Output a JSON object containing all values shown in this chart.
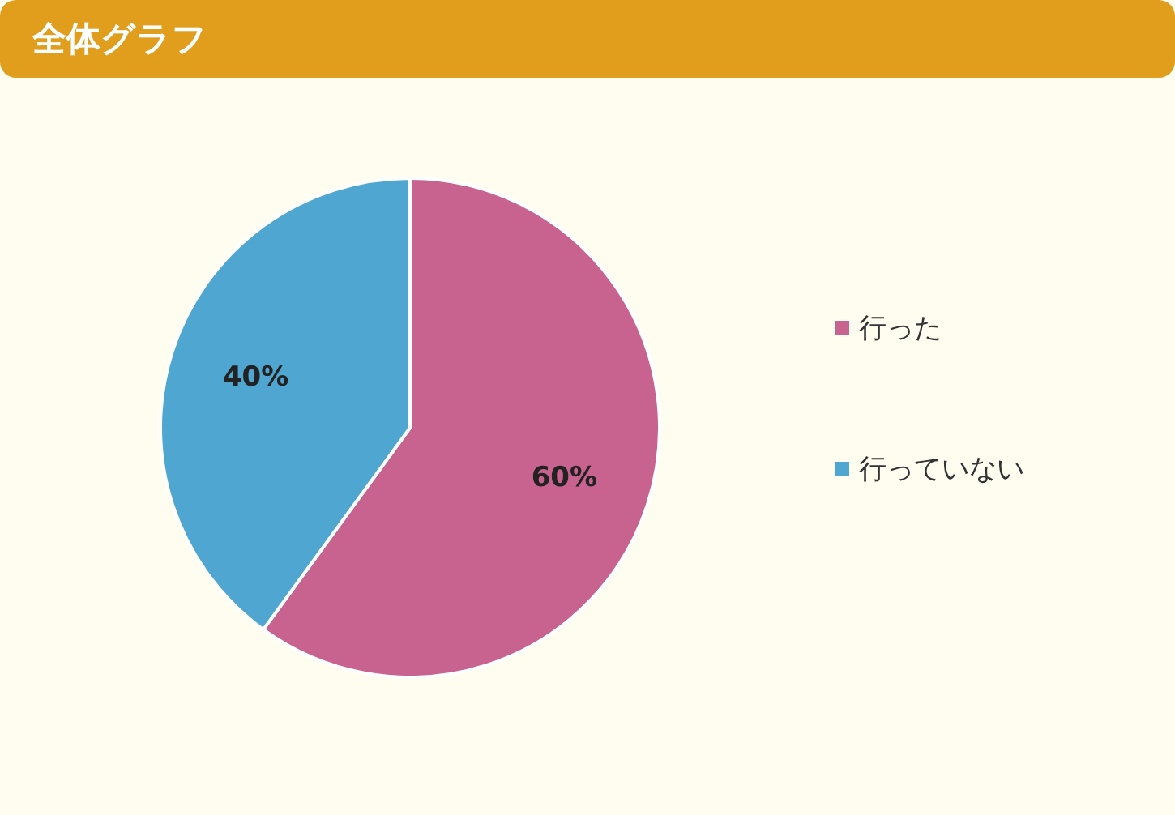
{
  "chart_data": {
    "type": "pie",
    "title": "全体グラフ",
    "categories": [
      "行った",
      "行っていない"
    ],
    "values": [
      60,
      40
    ],
    "colors": [
      "#c8628f",
      "#4fa6d0"
    ],
    "value_labels": [
      "60%",
      "40%"
    ],
    "legend": "right"
  }
}
